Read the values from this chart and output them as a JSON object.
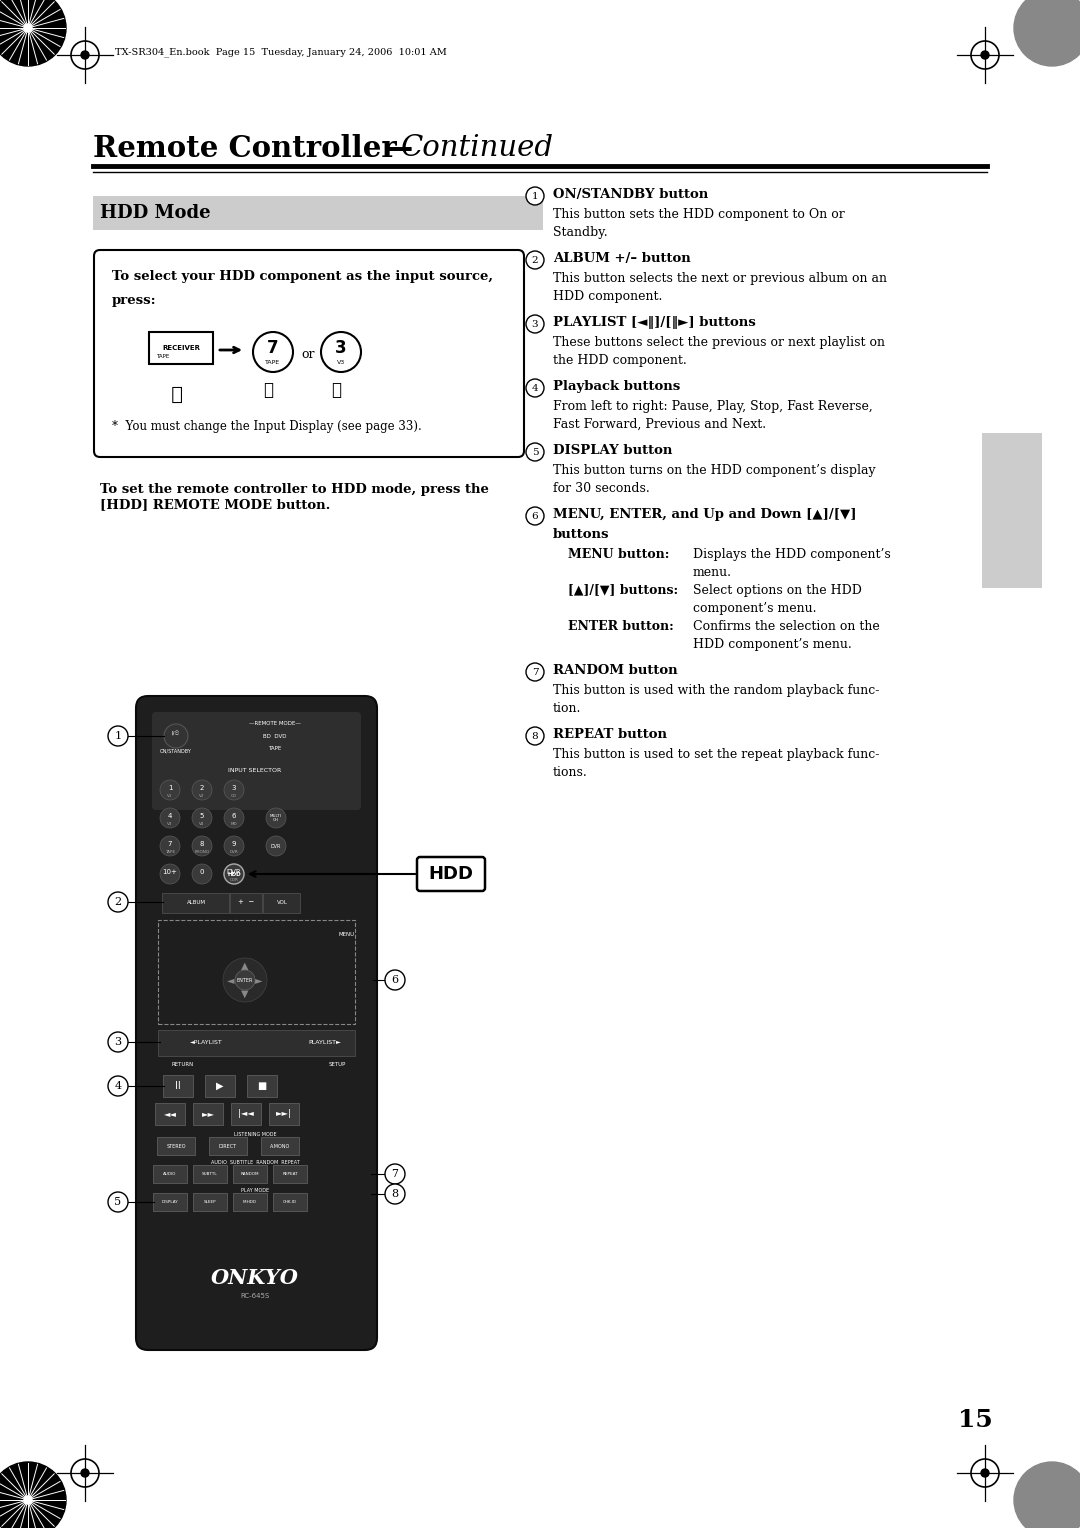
{
  "header_note": "TX-SR304_En.book  Page 15  Tuesday, January 24, 2006  10:01 AM",
  "page_title_bold": "Remote Controller",
  "page_title_dash": "—",
  "page_title_italic": "Continued",
  "section_title": "HDD Mode",
  "box_line1": "To select your HDD component as the input source,",
  "box_line2": "press:",
  "box_footnote": "*  You must change the Input Display (see page 33).",
  "below_box_bold": "To set the remote controller to HDD mode, press the\n[HDD] REMOTE MODE button.",
  "right_col_items": [
    {
      "num": "1",
      "head": "ON/STANDBY button",
      "body": "This button sets the HDD component to On or\nStandby.",
      "sub": []
    },
    {
      "num": "2",
      "head": "ALBUM +/– button",
      "body": "This button selects the next or previous album on an\nHDD component.",
      "sub": []
    },
    {
      "num": "3",
      "head": "PLAYLIST [◄‖]/[‖►] buttons",
      "body": "These buttons select the previous or next playlist on\nthe HDD component.",
      "sub": []
    },
    {
      "num": "4",
      "head": "Playback buttons",
      "body": "From left to right: Pause, Play, Stop, Fast Reverse,\nFast Forward, Previous and Next.",
      "sub": []
    },
    {
      "num": "5",
      "head": "DISPLAY button",
      "body": "This button turns on the HDD component’s display\nfor 30 seconds.",
      "sub": []
    },
    {
      "num": "6",
      "head": "MENU, ENTER, and Up and Down [▲]/[▼]\nbuttons",
      "body": "",
      "sub": [
        [
          "MENU button:",
          "Displays the HDD component’s\nmenu."
        ],
        [
          "[▲]/[▼] buttons:",
          "Select options on the HDD\ncomponent’s menu."
        ],
        [
          "ENTER button:",
          "Confirms the selection on the\nHDD component’s menu."
        ]
      ]
    },
    {
      "num": "7",
      "head": "RANDOM button",
      "body": "This button is used with the random playback func-\ntion.",
      "sub": []
    },
    {
      "num": "8",
      "head": "REPEAT button",
      "body": "This button is used to set the repeat playback func-\ntions.",
      "sub": []
    }
  ],
  "page_num": "15",
  "bg": "#ffffff",
  "section_bg": "#cccccc",
  "tab_color": "#cccccc"
}
